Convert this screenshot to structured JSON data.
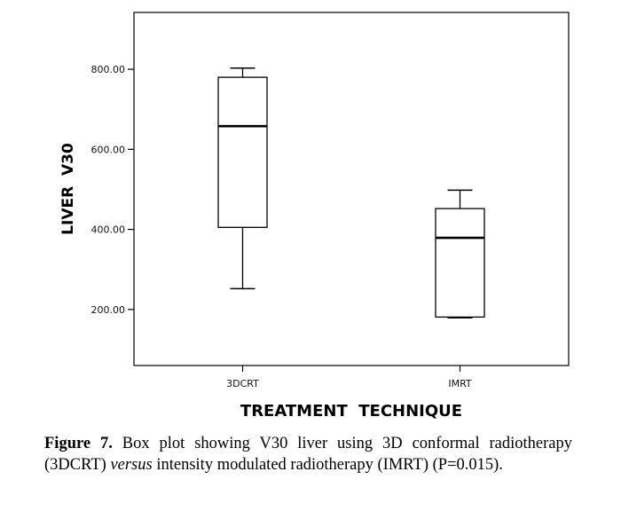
{
  "chart_data": {
    "type": "boxplot",
    "xlabel": "TREATMENT  TECHNIQUE",
    "ylabel": "LIVER  V30",
    "categories": [
      "3DCRT",
      "IMRT"
    ],
    "boxes": [
      {
        "category": "3DCRT",
        "min": 252,
        "q1": 405,
        "median": 658,
        "q3": 780,
        "max": 803
      },
      {
        "category": "IMRT",
        "min": 179,
        "q1": 181,
        "median": 379,
        "q3": 452,
        "max": 498
      }
    ],
    "yticks": [
      200,
      400,
      600,
      800
    ],
    "ytick_labels": [
      "200.00",
      "400.00",
      "600.00",
      "800.00"
    ],
    "ylim": [
      60,
      942
    ],
    "grid": false
  },
  "caption": {
    "label": "Figure 7.",
    "text_before": " Box plot showing V30 liver using 3D conformal radiotherapy (3DCRT) ",
    "italic": "versus",
    "text_after": " intensity modulated radiotherapy (IMRT) (P=0.015)."
  }
}
